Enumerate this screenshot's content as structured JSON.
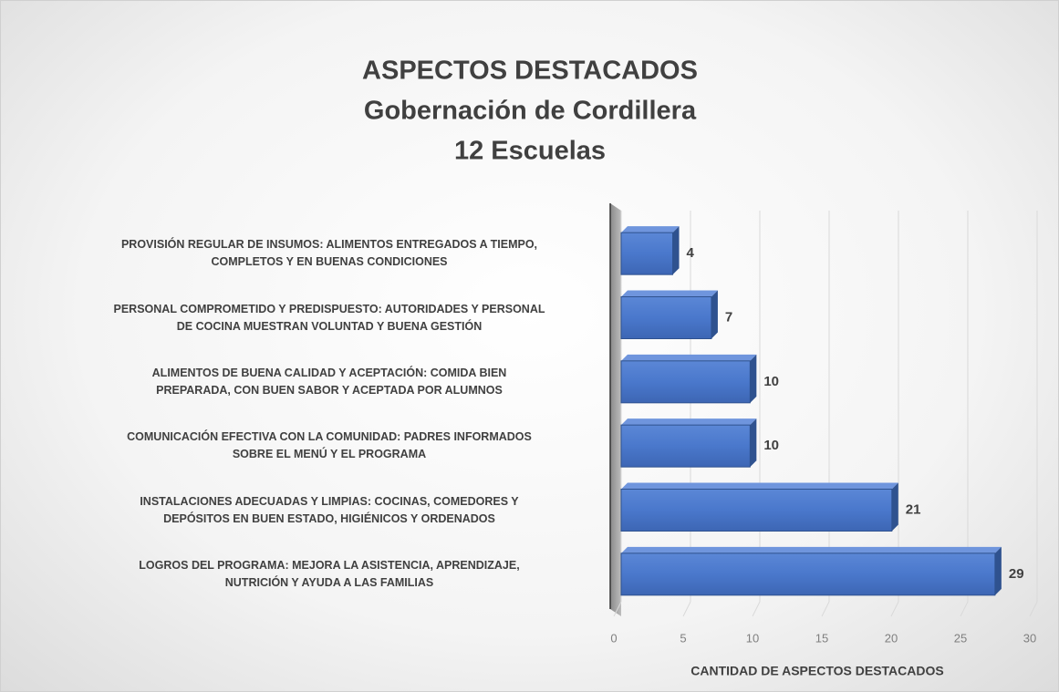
{
  "chart_data": {
    "type": "bar3d_horizontal",
    "title": [
      "ASPECTOS DESTACADOS",
      "Gobernación de Cordillera",
      "12 Escuelas"
    ],
    "categories": [
      "PROVISIÓN REGULAR DE INSUMOS: ALIMENTOS ENTREGADOS A TIEMPO,\nCOMPLETOS Y EN BUENAS CONDICIONES",
      "PERSONAL COMPROMETIDO Y PREDISPUESTO: AUTORIDADES Y PERSONAL\nDE COCINA MUESTRAN VOLUNTAD Y BUENA GESTIÓN",
      "ALIMENTOS DE BUENA CALIDAD Y ACEPTACIÓN: COMIDA BIEN\nPREPARADA, CON BUEN SABOR Y ACEPTADA POR ALUMNOS",
      "COMUNICACIÓN EFECTIVA CON LA COMUNIDAD: PADRES INFORMADOS\nSOBRE EL MENÚ Y EL PROGRAMA",
      "INSTALACIONES ADECUADAS Y LIMPIAS: COCINAS, COMEDORES Y\nDEPÓSITOS EN BUEN ESTADO, HIGIÉNICOS Y ORDENADOS",
      "LOGROS DEL PROGRAMA: MEJORA LA ASISTENCIA, APRENDIZAJE,\nNUTRICIÓN Y AYUDA A LAS FAMILIAS"
    ],
    "values": [
      4,
      7,
      10,
      10,
      21,
      29
    ],
    "color": "#4472c4",
    "xlabel": "CANTIDAD DE ASPECTOS DESTACADOS",
    "xlim": [
      0,
      30
    ],
    "xticks": [
      0,
      5,
      10,
      15,
      20,
      25,
      30
    ],
    "grid": true
  }
}
